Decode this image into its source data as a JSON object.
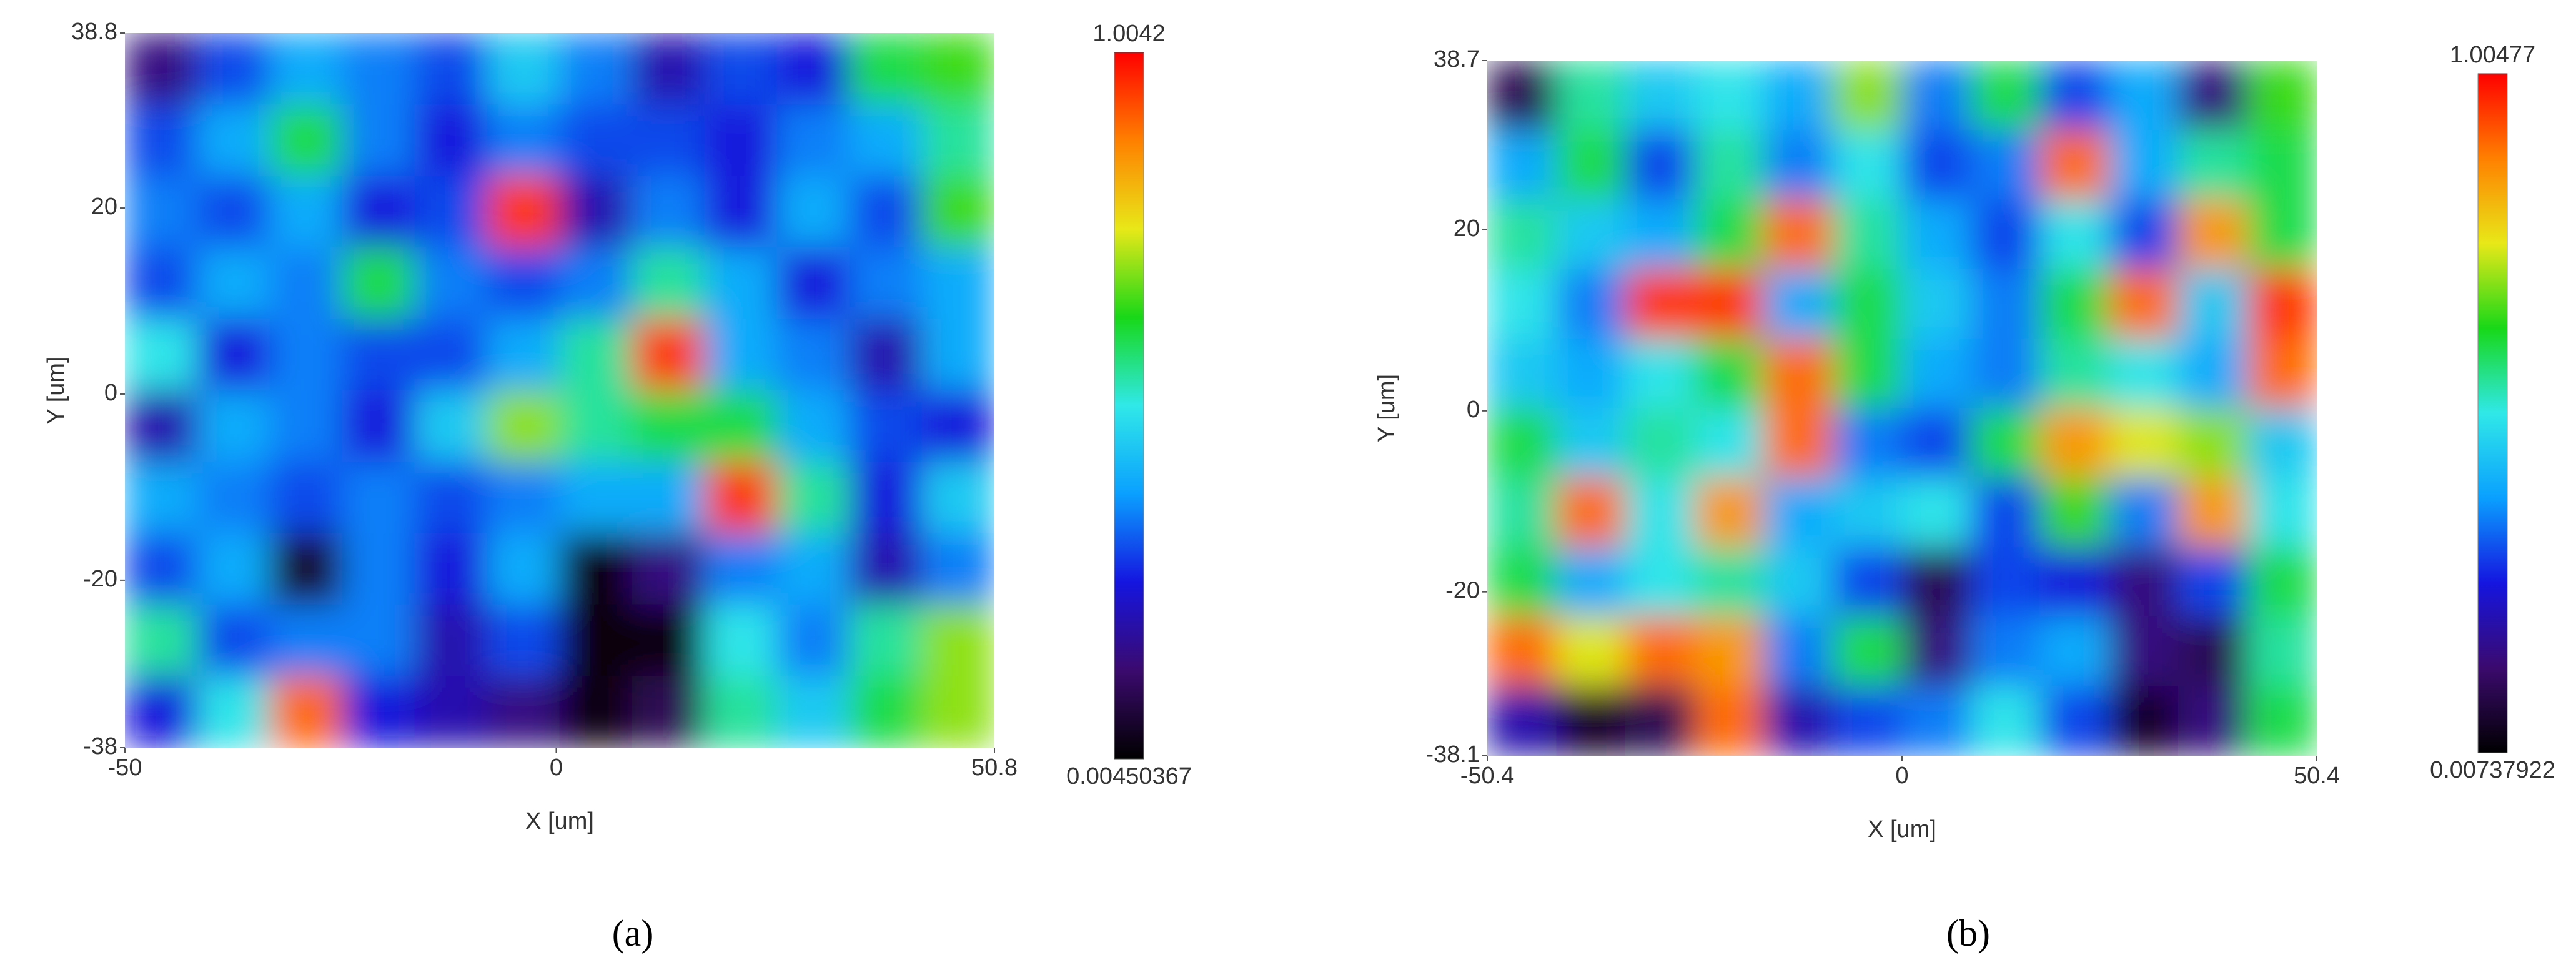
{
  "chart_data": [
    {
      "type": "heatmap",
      "caption": "(a)",
      "xlabel": "X [um]",
      "ylabel": "Y [um]",
      "xlim": [
        -50,
        50.8
      ],
      "ylim": [
        -38,
        38.8
      ],
      "xticks": [
        -50,
        0,
        50.8
      ],
      "yticks": [
        -38,
        -20,
        0,
        20,
        38.8
      ],
      "zlim": [
        0.00450367,
        1.0042
      ],
      "zticks": [
        0.00450367,
        1.0042
      ],
      "colormap": [
        "#000000",
        "#3b0a6e",
        "#1515e0",
        "#0aa0ff",
        "#30e8e8",
        "#18d818",
        "#e8e818",
        "#ff8000",
        "#ff0000"
      ],
      "z": [
        [
          0.15,
          0.3,
          0.4,
          0.35,
          0.3,
          0.45,
          0.35,
          0.2,
          0.3,
          0.25,
          0.6,
          0.65
        ],
        [
          0.3,
          0.4,
          0.6,
          0.35,
          0.25,
          0.35,
          0.3,
          0.3,
          0.25,
          0.35,
          0.4,
          0.55
        ],
        [
          0.35,
          0.3,
          0.4,
          0.25,
          0.3,
          0.95,
          0.2,
          0.35,
          0.25,
          0.4,
          0.3,
          0.65
        ],
        [
          0.3,
          0.4,
          0.35,
          0.6,
          0.35,
          0.3,
          0.35,
          0.55,
          0.4,
          0.25,
          0.35,
          0.4
        ],
        [
          0.5,
          0.25,
          0.35,
          0.3,
          0.3,
          0.4,
          0.55,
          0.95,
          0.4,
          0.35,
          0.2,
          0.4
        ],
        [
          0.2,
          0.4,
          0.35,
          0.25,
          0.45,
          0.7,
          0.55,
          0.6,
          0.6,
          0.4,
          0.3,
          0.25
        ],
        [
          0.4,
          0.35,
          0.3,
          0.35,
          0.3,
          0.35,
          0.4,
          0.4,
          0.95,
          0.55,
          0.25,
          0.45
        ],
        [
          0.3,
          0.4,
          0.05,
          0.35,
          0.25,
          0.4,
          0.02,
          0.15,
          0.35,
          0.4,
          0.2,
          0.35
        ],
        [
          0.55,
          0.3,
          0.35,
          0.35,
          0.2,
          0.3,
          0.02,
          0.02,
          0.5,
          0.35,
          0.55,
          0.7
        ],
        [
          0.25,
          0.5,
          0.9,
          0.25,
          0.2,
          0.15,
          0.02,
          0.1,
          0.55,
          0.45,
          0.6,
          0.7
        ]
      ]
    },
    {
      "type": "heatmap",
      "caption": "(b)",
      "xlabel": "X [um]",
      "ylabel": "Y [um]",
      "xlim": [
        -50.4,
        50.4
      ],
      "ylim": [
        -38.1,
        38.7
      ],
      "xticks": [
        -50.4,
        0,
        50.4
      ],
      "yticks": [
        -38.1,
        -20,
        0,
        20,
        38.7
      ],
      "zlim": [
        0.00737922,
        1.00477
      ],
      "zticks": [
        0.00737922,
        1.00477
      ],
      "colormap": [
        "#000000",
        "#3b0a6e",
        "#1515e0",
        "#0aa0ff",
        "#30e8e8",
        "#18d818",
        "#e8e818",
        "#ff8000",
        "#ff0000"
      ],
      "z": [
        [
          0.1,
          0.55,
          0.45,
          0.5,
          0.4,
          0.7,
          0.35,
          0.6,
          0.3,
          0.4,
          0.15,
          0.65
        ],
        [
          0.4,
          0.6,
          0.3,
          0.55,
          0.35,
          0.5,
          0.3,
          0.35,
          0.9,
          0.4,
          0.55,
          0.6
        ],
        [
          0.55,
          0.45,
          0.4,
          0.6,
          0.9,
          0.55,
          0.4,
          0.3,
          0.5,
          0.3,
          0.85,
          0.6
        ],
        [
          0.5,
          0.35,
          0.95,
          0.95,
          0.4,
          0.6,
          0.45,
          0.35,
          0.6,
          0.9,
          0.45,
          0.95
        ],
        [
          0.45,
          0.4,
          0.5,
          0.6,
          0.9,
          0.6,
          0.4,
          0.35,
          0.55,
          0.5,
          0.4,
          0.9
        ],
        [
          0.6,
          0.45,
          0.55,
          0.5,
          0.9,
          0.35,
          0.3,
          0.6,
          0.85,
          0.75,
          0.7,
          0.45
        ],
        [
          0.55,
          0.9,
          0.5,
          0.85,
          0.4,
          0.45,
          0.5,
          0.3,
          0.65,
          0.35,
          0.85,
          0.5
        ],
        [
          0.6,
          0.4,
          0.5,
          0.55,
          0.45,
          0.3,
          0.1,
          0.3,
          0.25,
          0.15,
          0.3,
          0.6
        ],
        [
          0.9,
          0.75,
          0.9,
          0.85,
          0.35,
          0.6,
          0.15,
          0.35,
          0.4,
          0.15,
          0.1,
          0.55
        ],
        [
          0.2,
          0.05,
          0.1,
          0.9,
          0.2,
          0.3,
          0.35,
          0.5,
          0.3,
          0.05,
          0.15,
          0.6
        ]
      ]
    }
  ]
}
